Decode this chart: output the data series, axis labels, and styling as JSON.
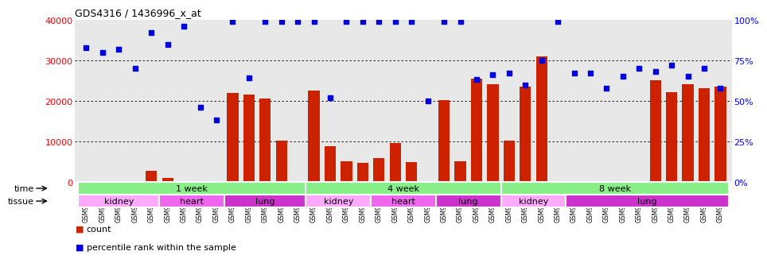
{
  "title": "GDS4316 / 1436996_x_at",
  "samples": [
    "GSM949115",
    "GSM949116",
    "GSM949117",
    "GSM949118",
    "GSM949119",
    "GSM949120",
    "GSM949121",
    "GSM949122",
    "GSM949123",
    "GSM949124",
    "GSM949125",
    "GSM949126",
    "GSM949127",
    "GSM949128",
    "GSM949129",
    "GSM949130",
    "GSM949131",
    "GSM949132",
    "GSM949133",
    "GSM949134",
    "GSM949135",
    "GSM949136",
    "GSM949137",
    "GSM949138",
    "GSM949139",
    "GSM949140",
    "GSM949141",
    "GSM949142",
    "GSM949143",
    "GSM949144",
    "GSM949145",
    "GSM949146",
    "GSM949147",
    "GSM949148",
    "GSM949149",
    "GSM949150",
    "GSM949151",
    "GSM949152",
    "GSM949153",
    "GSM949154"
  ],
  "counts": [
    150,
    150,
    150,
    150,
    2700,
    900,
    150,
    100,
    150,
    22000,
    21500,
    20500,
    10200,
    150,
    22500,
    8800,
    5100,
    4800,
    5900,
    9600,
    4900,
    150,
    20100,
    5100,
    25500,
    24200,
    10100,
    23500,
    30900,
    150,
    150,
    150,
    150,
    150,
    150,
    25100,
    22100,
    24100,
    23100,
    23600
  ],
  "percentiles": [
    83,
    80,
    82,
    70,
    92,
    85,
    96,
    46,
    38,
    99,
    64,
    99,
    99,
    99,
    99,
    52,
    99,
    99,
    99,
    99,
    99,
    50,
    99,
    99,
    63,
    66,
    67,
    60,
    75,
    99,
    67,
    67,
    58,
    65,
    70,
    68,
    72,
    65,
    70,
    58
  ],
  "time_groups": [
    {
      "label": "1 week",
      "start": 0,
      "end": 14
    },
    {
      "label": "4 week",
      "start": 14,
      "end": 26
    },
    {
      "label": "8 week",
      "start": 26,
      "end": 40
    }
  ],
  "tissue_groups": [
    {
      "label": "kidney",
      "start": 0,
      "end": 5
    },
    {
      "label": "heart",
      "start": 5,
      "end": 9
    },
    {
      "label": "lung",
      "start": 9,
      "end": 14
    },
    {
      "label": "kidney",
      "start": 14,
      "end": 18
    },
    {
      "label": "heart",
      "start": 18,
      "end": 22
    },
    {
      "label": "lung",
      "start": 22,
      "end": 26
    },
    {
      "label": "kidney",
      "start": 26,
      "end": 30
    },
    {
      "label": "lung",
      "start": 30,
      "end": 40
    }
  ],
  "ylim_left": [
    0,
    40000
  ],
  "ylim_right": [
    0,
    100
  ],
  "yticks_left": [
    0,
    10000,
    20000,
    30000,
    40000
  ],
  "yticks_right": [
    0,
    25,
    50,
    75,
    100
  ],
  "yticklabels_right": [
    "0%",
    "25%",
    "50%",
    "75%",
    "100%"
  ],
  "bar_color": "#cc2200",
  "dot_color": "#0000dd",
  "time_bg_color": "#88ee88",
  "tissue_kidney_color": "#ffaaff",
  "tissue_heart_color": "#ee66ee",
  "tissue_lung_color": "#cc33cc",
  "chart_bg_color": "#e8e8e8",
  "grid_color": "#000000"
}
